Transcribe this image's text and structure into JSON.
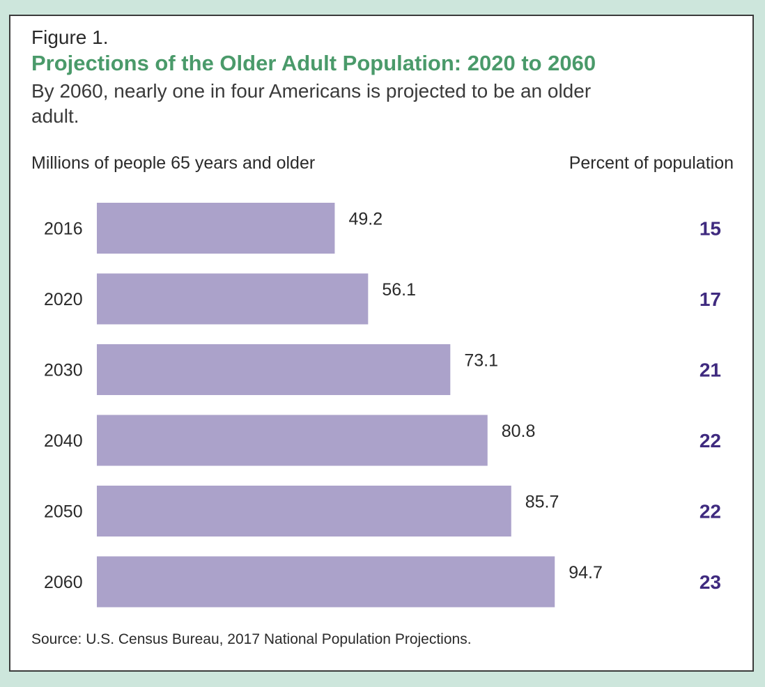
{
  "figure_label": "Figure 1.",
  "title": "Projections of the Older Adult Population: 2020 to 2060",
  "subtitle": "By 2060, nearly one in four Americans is projected to be an older adult.",
  "left_header": "Millions of people 65 years and older",
  "right_header": "Percent of population",
  "source": "Source: U.S. Census Bureau, 2017 National Population Projections.",
  "colors": {
    "bar": "#aba2ca",
    "title": "#4a9a6a",
    "percent": "#3f2a7f",
    "background": "#cde6dc"
  },
  "chart_data": {
    "type": "bar",
    "orientation": "horizontal",
    "categories": [
      "2016",
      "2020",
      "2030",
      "2040",
      "2050",
      "2060"
    ],
    "values": [
      49.2,
      56.1,
      73.1,
      80.8,
      85.7,
      94.7
    ],
    "value_labels": [
      "49.2",
      "56.1",
      "73.1",
      "80.8",
      "85.7",
      "94.7"
    ],
    "percent_of_population": [
      "15",
      "17",
      "21",
      "22",
      "22",
      "23"
    ],
    "xlim": [
      0,
      100
    ],
    "grid": false,
    "legend": "none"
  }
}
